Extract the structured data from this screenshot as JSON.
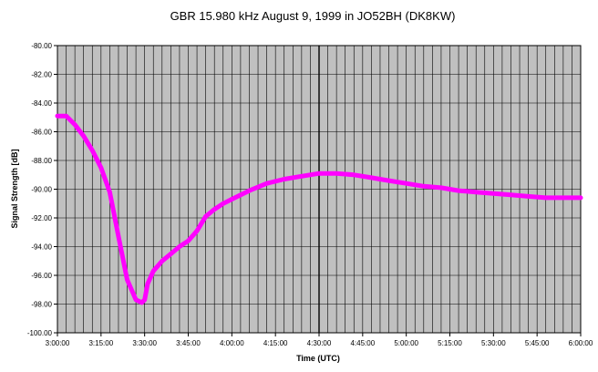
{
  "chart_data": {
    "type": "line",
    "title": "GBR 15.980 kHz August 9, 1999 in JO52BH (DK8KW)",
    "xlabel": "Time (UTC)",
    "ylabel": "Signal Strength [dB]",
    "xlim": [
      "3:00:00",
      "6:00:00"
    ],
    "ylim": [
      -100,
      -80
    ],
    "grid": true,
    "x_ticks": [
      "3:00:00",
      "3:15:00",
      "3:30:00",
      "3:45:00",
      "4:00:00",
      "4:15:00",
      "4:30:00",
      "4:45:00",
      "5:00:00",
      "5:15:00",
      "5:30:00",
      "5:45:00",
      "6:00:00"
    ],
    "y_ticks": [
      "-80.00",
      "-82.00",
      "-84.00",
      "-86.00",
      "-88.00",
      "-90.00",
      "-92.00",
      "-94.00",
      "-96.00",
      "-98.00",
      "-100.00"
    ],
    "series": [
      {
        "color": "#ff00ff",
        "x": [
          "3:00:00",
          "3:03:00",
          "3:06:00",
          "3:09:00",
          "3:12:00",
          "3:15:00",
          "3:18:00",
          "3:21:00",
          "3:24:00",
          "3:27:00",
          "3:29:00",
          "3:30:00",
          "3:31:00",
          "3:33:00",
          "3:36:00",
          "3:39:00",
          "3:42:00",
          "3:45:00",
          "3:48:00",
          "3:51:00",
          "3:54:00",
          "3:57:00",
          "4:00:00",
          "4:06:00",
          "4:12:00",
          "4:18:00",
          "4:24:00",
          "4:30:00",
          "4:36:00",
          "4:42:00",
          "4:48:00",
          "4:54:00",
          "5:00:00",
          "5:06:00",
          "5:12:00",
          "5:18:00",
          "5:24:00",
          "5:30:00",
          "5:36:00",
          "5:42:00",
          "5:48:00",
          "5:54:00",
          "6:00:00"
        ],
        "y": [
          -84.9,
          -84.9,
          -85.5,
          -86.3,
          -87.3,
          -88.5,
          -90.2,
          -93.3,
          -96.3,
          -97.7,
          -97.9,
          -97.7,
          -96.6,
          -95.7,
          -95.0,
          -94.5,
          -94.0,
          -93.6,
          -92.9,
          -91.9,
          -91.4,
          -91.0,
          -90.7,
          -90.1,
          -89.6,
          -89.3,
          -89.1,
          -88.9,
          -88.9,
          -89.0,
          -89.2,
          -89.4,
          -89.6,
          -89.8,
          -89.9,
          -90.1,
          -90.2,
          -90.3,
          -90.4,
          -90.5,
          -90.6,
          -90.6,
          -90.6
        ]
      }
    ]
  }
}
